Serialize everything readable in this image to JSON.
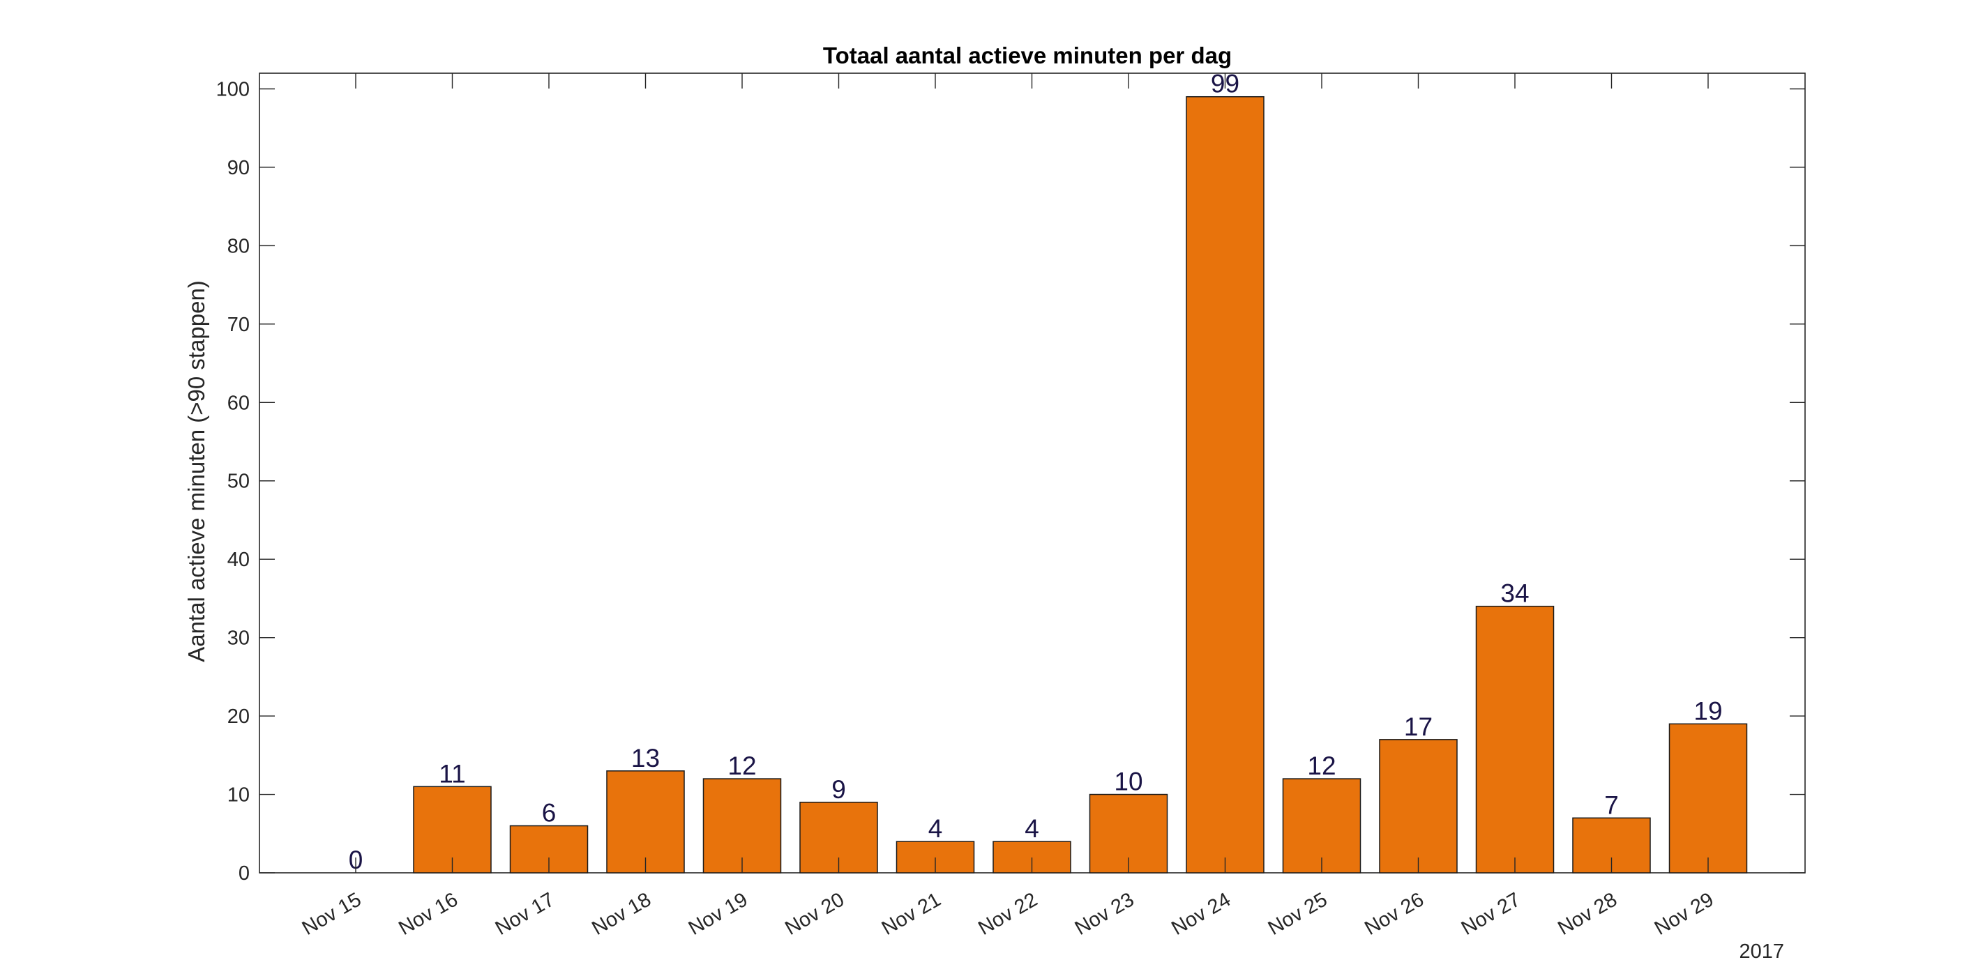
{
  "chart_data": {
    "type": "bar",
    "title": "Totaal aantal actieve minuten per dag",
    "xlabel": "",
    "ylabel": "Aantal actieve minuten (>90 stappen)",
    "x_secondary_label": "2017",
    "categories": [
      "Nov 15",
      "Nov 16",
      "Nov 17",
      "Nov 18",
      "Nov 19",
      "Nov 20",
      "Nov 21",
      "Nov 22",
      "Nov 23",
      "Nov 24",
      "Nov 25",
      "Nov 26",
      "Nov 27",
      "Nov 28",
      "Nov 29"
    ],
    "values": [
      0,
      11,
      6,
      13,
      12,
      9,
      4,
      4,
      10,
      99,
      12,
      17,
      34,
      7,
      19
    ],
    "data_labels": [
      "0",
      "11",
      "6",
      "13",
      "12",
      "9",
      "4",
      "4",
      "10",
      "99",
      "12",
      "17",
      "34",
      "7",
      "19"
    ],
    "ylim": [
      0,
      102
    ],
    "yticks": [
      0,
      10,
      20,
      30,
      40,
      50,
      60,
      70,
      80,
      90,
      100
    ],
    "grid": false,
    "legend": "none",
    "bar_color": "#e8730c",
    "bar_edge_color": "#1a1a1a",
    "label_color": "#1a1446"
  }
}
